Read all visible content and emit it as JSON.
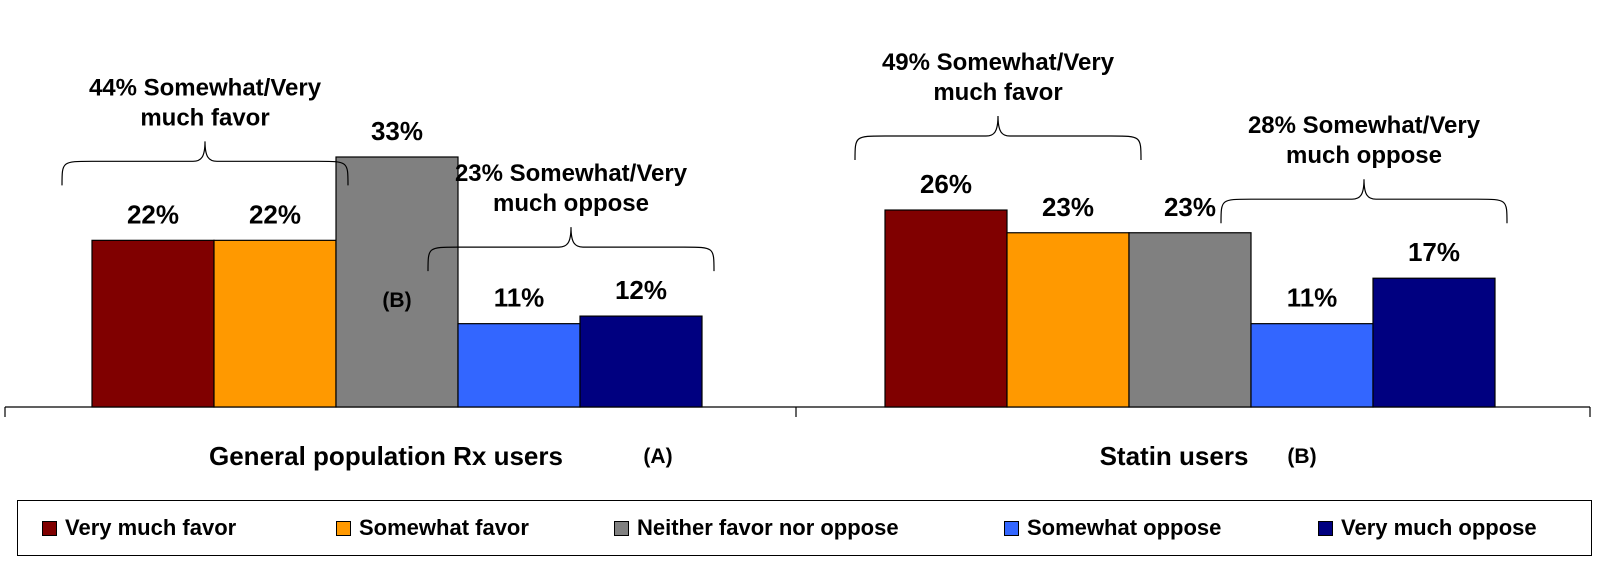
{
  "chart_data": {
    "type": "bar",
    "title": "",
    "ylim": [
      0,
      40
    ],
    "grid": false,
    "legend_position": "bottom",
    "groups": [
      {
        "name": "General population Rx users",
        "tag": "(A)",
        "values": [
          22,
          22,
          33,
          11,
          12
        ],
        "labels": [
          "22%",
          "22%",
          "33%",
          "11%",
          "12%"
        ],
        "inner_labels": [
          "",
          "",
          "(B)",
          "",
          ""
        ],
        "brackets": [
          {
            "text_line1": "44% Somewhat/Very",
            "text_line2": "much favor"
          },
          {
            "text_line1": "23% Somewhat/Very",
            "text_line2": "much oppose"
          }
        ]
      },
      {
        "name": "Statin users",
        "tag": "(B)",
        "values": [
          26,
          23,
          23,
          11,
          17
        ],
        "labels": [
          "26%",
          "23%",
          "23%",
          "11%",
          "17%"
        ],
        "inner_labels": [
          "",
          "",
          "",
          "",
          ""
        ],
        "brackets": [
          {
            "text_line1": "49% Somewhat/Very",
            "text_line2": "much favor"
          },
          {
            "text_line1": "28% Somewhat/Very",
            "text_line2": "much oppose"
          }
        ]
      }
    ],
    "series": [
      {
        "name": "Very much favor",
        "color": "#800000"
      },
      {
        "name": "Somewhat favor",
        "color": "#FF9900"
      },
      {
        "name": "Neither favor nor oppose",
        "color": "#808080"
      },
      {
        "name": "Somewhat oppose",
        "color": "#3366FF"
      },
      {
        "name": "Very much oppose",
        "color": "#000080"
      }
    ]
  }
}
